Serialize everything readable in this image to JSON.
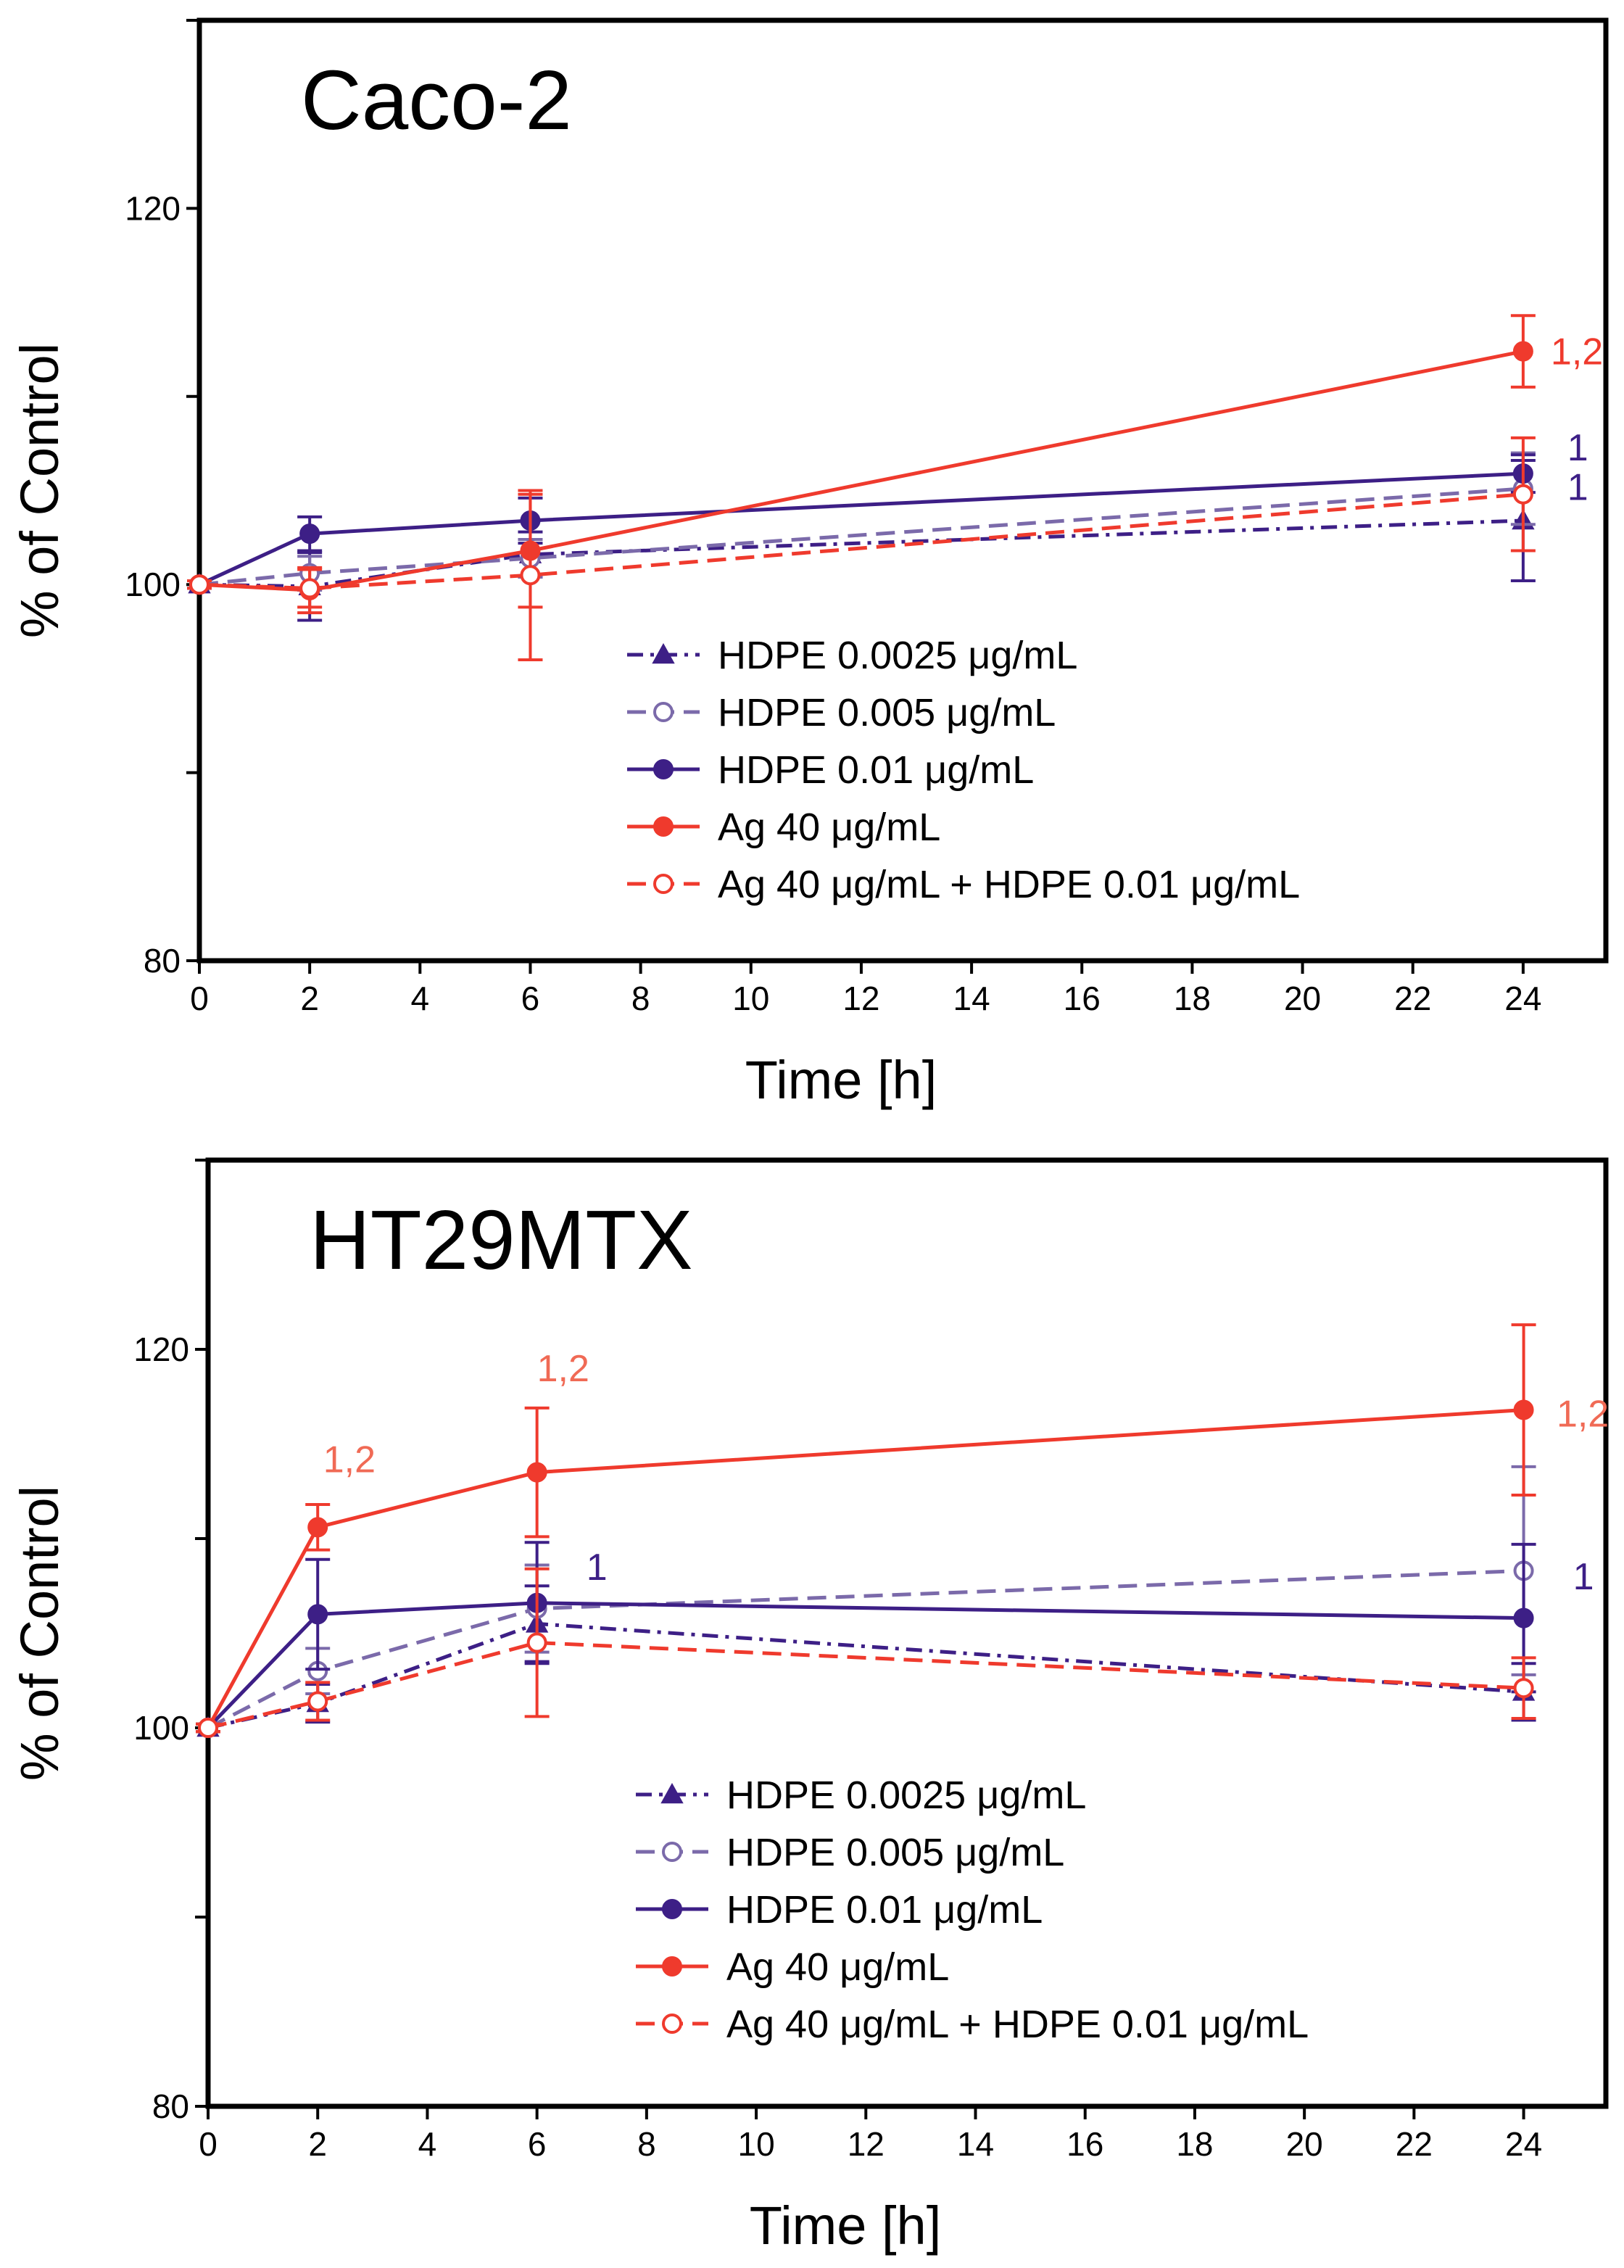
{
  "chart_data": [
    {
      "type": "line",
      "title": "Caco-2",
      "xlabel": "Time [h]",
      "ylabel": "% of Control",
      "xlim": [
        0,
        25.5
      ],
      "ylim": [
        80,
        130
      ],
      "xticks": [
        0,
        2,
        4,
        6,
        8,
        10,
        12,
        14,
        16,
        18,
        20,
        22,
        24
      ],
      "yticks": [
        80,
        100,
        120
      ],
      "legend_position": "lower-center",
      "series": [
        {
          "name": "HDPE 0.0025 μg/mL",
          "color": "#3d1f86",
          "marker": "triangle",
          "filled": true,
          "dash": "dashdot",
          "x": [
            0,
            2,
            6,
            24
          ],
          "y": [
            100,
            99.9,
            101.6,
            103.4
          ],
          "err": [
            0.2,
            1.8,
            1.2,
            3.2
          ]
        },
        {
          "name": "HDPE 0.005 μg/mL",
          "color": "#7b6aaa",
          "marker": "circle",
          "filled": false,
          "dash": "dash",
          "x": [
            0,
            2,
            6,
            24
          ],
          "y": [
            100,
            100.6,
            101.4,
            105.1
          ],
          "err": [
            0.2,
            0.9,
            1.0,
            1.9
          ]
        },
        {
          "name": "HDPE 0.01 μg/mL",
          "color": "#3d1f86",
          "marker": "circle",
          "filled": true,
          "dash": "solid",
          "x": [
            0,
            2,
            6,
            24
          ],
          "y": [
            100,
            102.7,
            103.4,
            105.9
          ],
          "err": [
            0.2,
            0.9,
            1.2,
            1.0
          ]
        },
        {
          "name": "Ag 40 μg/mL",
          "color": "#ef3a2d",
          "marker": "circle",
          "filled": true,
          "dash": "solid",
          "x": [
            0,
            2,
            6,
            24
          ],
          "y": [
            100,
            99.7,
            101.8,
            112.4
          ],
          "err": [
            0.2,
            1.2,
            3.0,
            1.9
          ]
        },
        {
          "name": "Ag 40 μg/mL + HDPE 0.01 μg/mL",
          "color": "#ef3a2d",
          "marker": "circle",
          "filled": false,
          "dash": "dash",
          "x": [
            0,
            2,
            6,
            24
          ],
          "y": [
            100,
            99.8,
            100.5,
            104.8
          ],
          "err": [
            0.2,
            1.0,
            4.5,
            3.0
          ]
        }
      ],
      "annotations": [
        {
          "text": "1,2",
          "x": 24.5,
          "y": 112.4,
          "color": "#ef3a2d"
        },
        {
          "text": "1",
          "x": 24.8,
          "y": 107.3,
          "color": "#3d1f86"
        },
        {
          "text": "1",
          "x": 24.8,
          "y": 105.2,
          "color": "#3d1f86"
        }
      ]
    },
    {
      "type": "line",
      "title": "HT29MTX",
      "xlabel": "Time [h]",
      "ylabel": "% of Control",
      "xlim": [
        0,
        25.5
      ],
      "ylim": [
        80,
        130
      ],
      "xticks": [
        0,
        2,
        4,
        6,
        8,
        10,
        12,
        14,
        16,
        18,
        20,
        22,
        24
      ],
      "yticks": [
        80,
        100,
        120
      ],
      "legend_position": "lower-center",
      "series": [
        {
          "name": "HDPE 0.0025 μg/mL",
          "color": "#3d1f86",
          "marker": "triangle",
          "filled": true,
          "dash": "dashdot",
          "x": [
            0,
            2,
            6,
            24
          ],
          "y": [
            100,
            101.3,
            105.5,
            101.9
          ],
          "err": [
            0.2,
            1.0,
            2.0,
            1.5
          ]
        },
        {
          "name": "HDPE 0.005 μg/mL",
          "color": "#7b6aaa",
          "marker": "circle",
          "filled": false,
          "dash": "dash",
          "x": [
            0,
            2,
            6,
            24
          ],
          "y": [
            100,
            103.0,
            106.3,
            108.3
          ],
          "err": [
            0.2,
            1.2,
            2.3,
            5.5
          ]
        },
        {
          "name": "HDPE 0.01 μg/mL",
          "color": "#3d1f86",
          "marker": "circle",
          "filled": true,
          "dash": "solid",
          "x": [
            0,
            2,
            6,
            24
          ],
          "y": [
            100,
            106.0,
            106.6,
            105.8
          ],
          "err": [
            0.2,
            2.9,
            3.2,
            3.9
          ]
        },
        {
          "name": "Ag 40 μg/mL",
          "color": "#ef3a2d",
          "marker": "circle",
          "filled": true,
          "dash": "solid",
          "x": [
            0,
            2,
            6,
            24
          ],
          "y": [
            100,
            110.6,
            113.5,
            116.8
          ],
          "err": [
            0.2,
            1.2,
            3.4,
            4.5
          ]
        },
        {
          "name": "Ag 40 μg/mL + HDPE 0.01 μg/mL",
          "color": "#ef3a2d",
          "marker": "circle",
          "filled": false,
          "dash": "dash",
          "x": [
            0,
            2,
            6,
            24
          ],
          "y": [
            100,
            101.4,
            104.5,
            102.1
          ],
          "err": [
            0.2,
            1.0,
            3.9,
            1.6
          ]
        }
      ],
      "annotations": [
        {
          "text": "1,2",
          "x": 2.1,
          "y": 114.2,
          "color": "#f06a55"
        },
        {
          "text": "1,2",
          "x": 6.0,
          "y": 119.0,
          "color": "#f06a55"
        },
        {
          "text": "1,2",
          "x": 24.6,
          "y": 116.6,
          "color": "#f06a55"
        },
        {
          "text": "1",
          "x": 6.9,
          "y": 108.5,
          "color": "#3d1f86"
        },
        {
          "text": "1",
          "x": 24.9,
          "y": 108.0,
          "color": "#3d1f86"
        }
      ]
    }
  ]
}
